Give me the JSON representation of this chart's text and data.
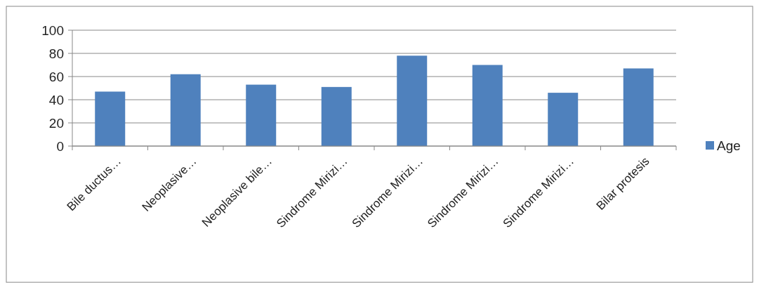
{
  "chart_data": {
    "type": "bar",
    "categories": [
      "Bile ductus…",
      "Neoplasive…",
      "Neoplasive bile…",
      "Sindrome Mirizi…",
      "Sindrome Mirizi…",
      "Sindrome Mirizi…",
      "Sindrome Mirizi…",
      "Bilar protesis"
    ],
    "series": [
      {
        "name": "Age",
        "color": "#4f81bd",
        "values": [
          47,
          62,
          53,
          51,
          78,
          70,
          46,
          67
        ]
      }
    ],
    "ylim": [
      0,
      100
    ],
    "yticks": [
      0,
      20,
      40,
      60,
      80,
      100
    ],
    "grid": "y",
    "legend": "right"
  }
}
